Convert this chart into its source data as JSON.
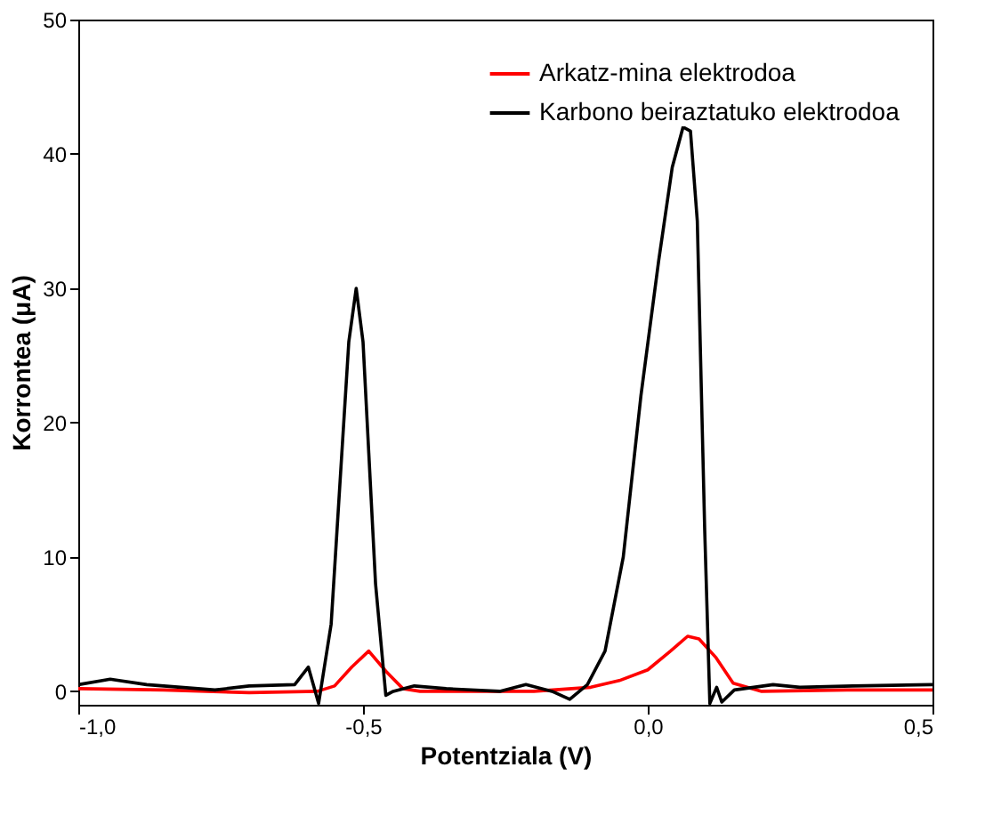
{
  "chart_data": {
    "type": "line",
    "xlabel": "Potentziala (V)",
    "ylabel": "Korrontea (μA)",
    "xlim": [
      -1.0,
      0.5
    ],
    "ylim": [
      -1,
      50
    ],
    "xticks": [
      {
        "value": -1.0,
        "label": "-1,0"
      },
      {
        "value": -0.5,
        "label": "-0,5"
      },
      {
        "value": 0.0,
        "label": "0,0"
      },
      {
        "value": 0.5,
        "label": "0,5"
      }
    ],
    "yticks": [
      0,
      10,
      20,
      30,
      40,
      50
    ],
    "grid": false,
    "legend": "top right",
    "line_style": "solid",
    "marker": "none",
    "series": [
      {
        "name": "Arkatz-mina elektrodoa",
        "color": "#ff0000",
        "x": [
          -1.0,
          -0.85,
          -0.7,
          -0.58,
          -0.55,
          -0.52,
          -0.49,
          -0.46,
          -0.43,
          -0.4,
          -0.2,
          -0.1,
          -0.05,
          0.0,
          0.04,
          0.07,
          0.09,
          0.12,
          0.15,
          0.2,
          0.35,
          0.5
        ],
        "values": [
          0.2,
          0.1,
          -0.1,
          0.0,
          0.4,
          1.8,
          3.0,
          1.5,
          0.2,
          0.0,
          0.0,
          0.3,
          0.8,
          1.6,
          3.0,
          4.1,
          3.9,
          2.5,
          0.6,
          0.0,
          0.1,
          0.1
        ]
      },
      {
        "name": "Karbono beiraztatuko elektrodoa",
        "color": "#000000",
        "x": [
          -1.0,
          -0.944,
          -0.88,
          -0.76,
          -0.7,
          -0.62,
          -0.596,
          -0.578,
          -0.556,
          -0.525,
          -0.512,
          -0.5,
          -0.478,
          -0.46,
          -0.447,
          -0.41,
          -0.354,
          -0.26,
          -0.214,
          -0.168,
          -0.137,
          -0.106,
          -0.075,
          -0.043,
          -0.012,
          0.019,
          0.043,
          0.062,
          0.075,
          0.087,
          0.1,
          0.109,
          0.121,
          0.13,
          0.152,
          0.22,
          0.267,
          0.36,
          0.5
        ],
        "values": [
          0.5,
          0.9,
          0.5,
          0.1,
          0.4,
          0.5,
          1.8,
          -0.9,
          5,
          26,
          30,
          26,
          8,
          -0.3,
          0,
          0.4,
          0.2,
          0,
          0.5,
          0,
          -0.6,
          0.5,
          3,
          10,
          22,
          32,
          39,
          42,
          41.7,
          35,
          12,
          -0.9,
          0.3,
          -0.8,
          0.1,
          0.5,
          0.3,
          0.4,
          0.5
        ]
      }
    ]
  }
}
